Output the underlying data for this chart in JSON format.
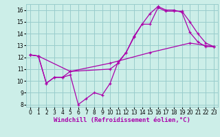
{
  "background_color": "#cceee8",
  "line_color": "#aa00aa",
  "grid_color": "#99cccc",
  "xlabel": "Windchill (Refroidissement éolien,°C)",
  "xlabel_fontsize": 6.5,
  "tick_fontsize": 5.5,
  "xlim": [
    -0.5,
    23.5
  ],
  "ylim": [
    7.8,
    16.5
  ],
  "yticks": [
    8,
    9,
    10,
    11,
    12,
    13,
    14,
    15,
    16
  ],
  "xticks": [
    0,
    1,
    2,
    3,
    4,
    5,
    6,
    7,
    8,
    9,
    10,
    11,
    12,
    13,
    14,
    15,
    16,
    17,
    18,
    19,
    20,
    21,
    22,
    23
  ],
  "line1_x": [
    0,
    1,
    2,
    3,
    4,
    5,
    6,
    7,
    8,
    9,
    10,
    11,
    12,
    13,
    14,
    15,
    16,
    17,
    18,
    19,
    20,
    21,
    22,
    23
  ],
  "line1_y": [
    12.2,
    12.1,
    9.8,
    10.3,
    10.3,
    10.5,
    8.0,
    8.5,
    9.0,
    8.8,
    9.8,
    11.6,
    12.4,
    13.8,
    14.8,
    15.7,
    16.3,
    16.0,
    16.0,
    15.8,
    14.1,
    13.3,
    12.9,
    12.9
  ],
  "line2_x": [
    0,
    1,
    2,
    3,
    4,
    5,
    10,
    11,
    12,
    13,
    14,
    15,
    16,
    17,
    18,
    19,
    20,
    21,
    22,
    23
  ],
  "line2_y": [
    12.2,
    12.1,
    9.8,
    10.3,
    10.3,
    10.8,
    11.0,
    11.5,
    12.4,
    13.7,
    14.8,
    14.8,
    16.2,
    15.9,
    15.9,
    15.9,
    15.0,
    14.0,
    13.2,
    12.9
  ],
  "line3_x": [
    0,
    1,
    5,
    10,
    15,
    20,
    23
  ],
  "line3_y": [
    12.2,
    12.1,
    10.8,
    11.5,
    12.4,
    13.2,
    12.9
  ]
}
